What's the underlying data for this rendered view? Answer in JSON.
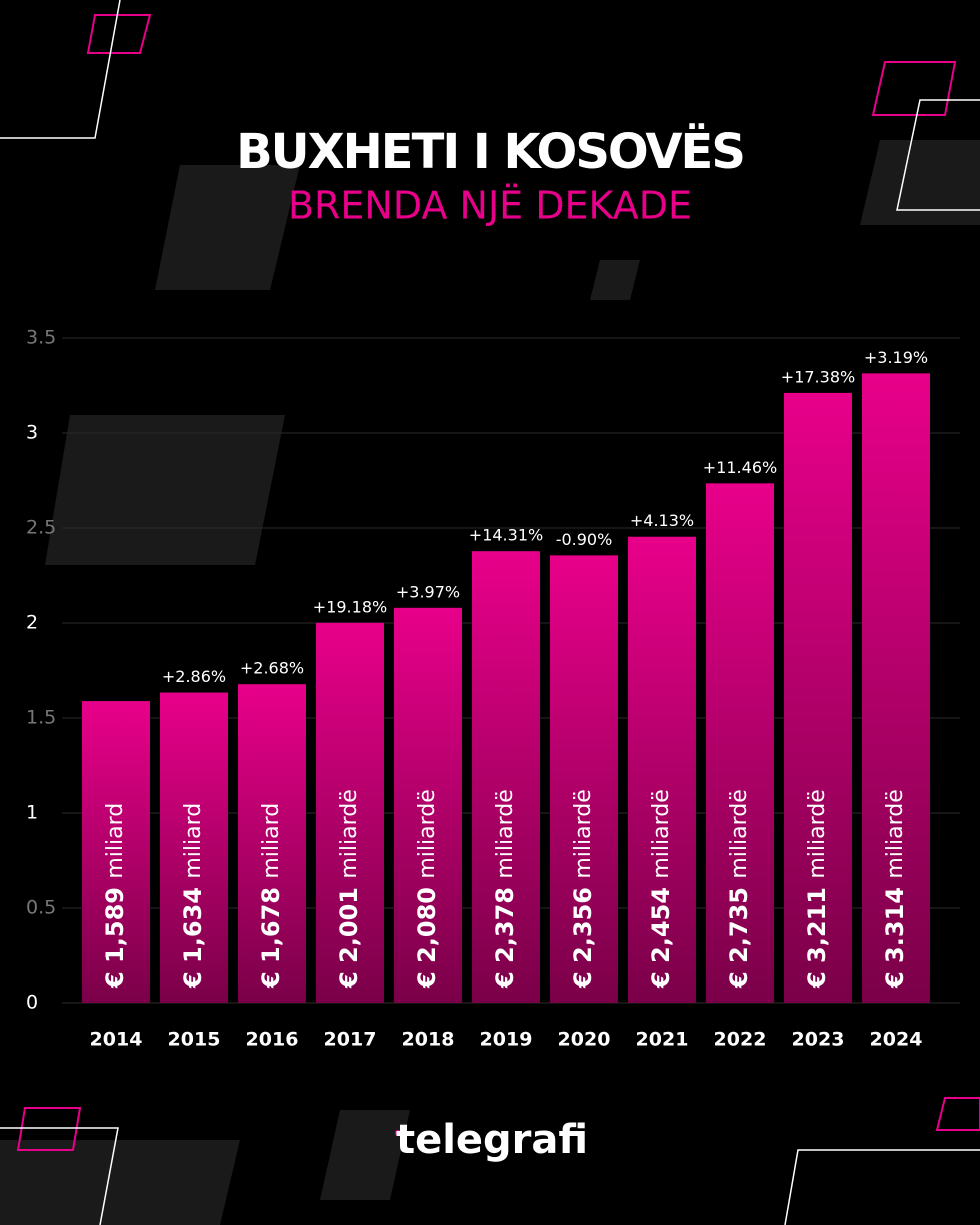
{
  "chart_data": {
    "type": "bar",
    "title": "BUXHETI I KOSOVËS",
    "subtitle": "BRENDA NJË DEKADE",
    "categories": [
      "2014",
      "2015",
      "2016",
      "2017",
      "2018",
      "2019",
      "2020",
      "2021",
      "2022",
      "2023",
      "2024"
    ],
    "values": [
      1.589,
      1.634,
      1.678,
      2.001,
      2.08,
      2.378,
      2.356,
      2.454,
      2.735,
      3.211,
      3.314
    ],
    "value_labels": [
      "€ 1,589 miliard",
      "€ 1,634 miliard",
      "€ 1,678 miliard",
      "€ 2,001 miliardë",
      "€ 2,080 miliardë",
      "€ 2,378 miliardë",
      "€ 2,356 miliardë",
      "€ 2,454 miliardë",
      "€ 2,735 miliardë",
      "€ 3,211 miliardë",
      "€ 3.314 miliardë"
    ],
    "annotations": [
      null,
      "+2.86%",
      "+2.68%",
      "+19.18%",
      "+3.97%",
      "+14.31%",
      "-0.90%",
      "+4.13%",
      "+11.46%",
      "+17.38%",
      "+3.19%"
    ],
    "color": "#e8008a",
    "ylim": [
      0,
      3.5
    ],
    "yticks": [
      0,
      0.5,
      1,
      1.5,
      2,
      2.5,
      3,
      3.5
    ],
    "grid": true,
    "source": "telegrafi"
  }
}
